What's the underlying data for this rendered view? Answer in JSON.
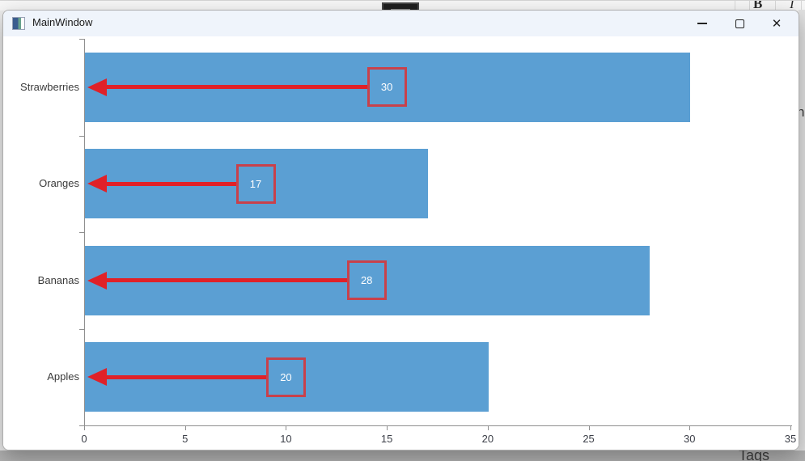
{
  "window": {
    "title": "MainWindow",
    "controls": [
      {
        "name": "minimize"
      },
      {
        "name": "maximize"
      },
      {
        "name": "close",
        "glyph": "✕"
      }
    ]
  },
  "background": {
    "top_toolbar": {
      "bold_label": "B",
      "italic_label": "I"
    },
    "bottom_partial_text": "Tags",
    "right_partial_text": "ng"
  },
  "chart_data": {
    "type": "bar",
    "orientation": "horizontal",
    "title": "",
    "categories": [
      "Strawberries",
      "Oranges",
      "Bananas",
      "Apples"
    ],
    "values": [
      30,
      17,
      28,
      20
    ],
    "value_labels": [
      "30",
      "17",
      "28",
      "20"
    ],
    "xlim": [
      0,
      35
    ],
    "xticks": [
      0,
      5,
      10,
      15,
      20,
      25,
      30,
      35
    ],
    "grid": "off",
    "legend": "none",
    "bar_color": "#5b9fd3",
    "axis_color": "#8f8f8f",
    "tick_text_color": "#3d4049",
    "category_text_color": "#3b3b3b",
    "annotation": {
      "style": "arrow-from-bar-midpoint-to-axis",
      "arrow_color": "#e02128",
      "box_border_color": "#c8414b",
      "box_text_color": "#ffffff"
    }
  }
}
